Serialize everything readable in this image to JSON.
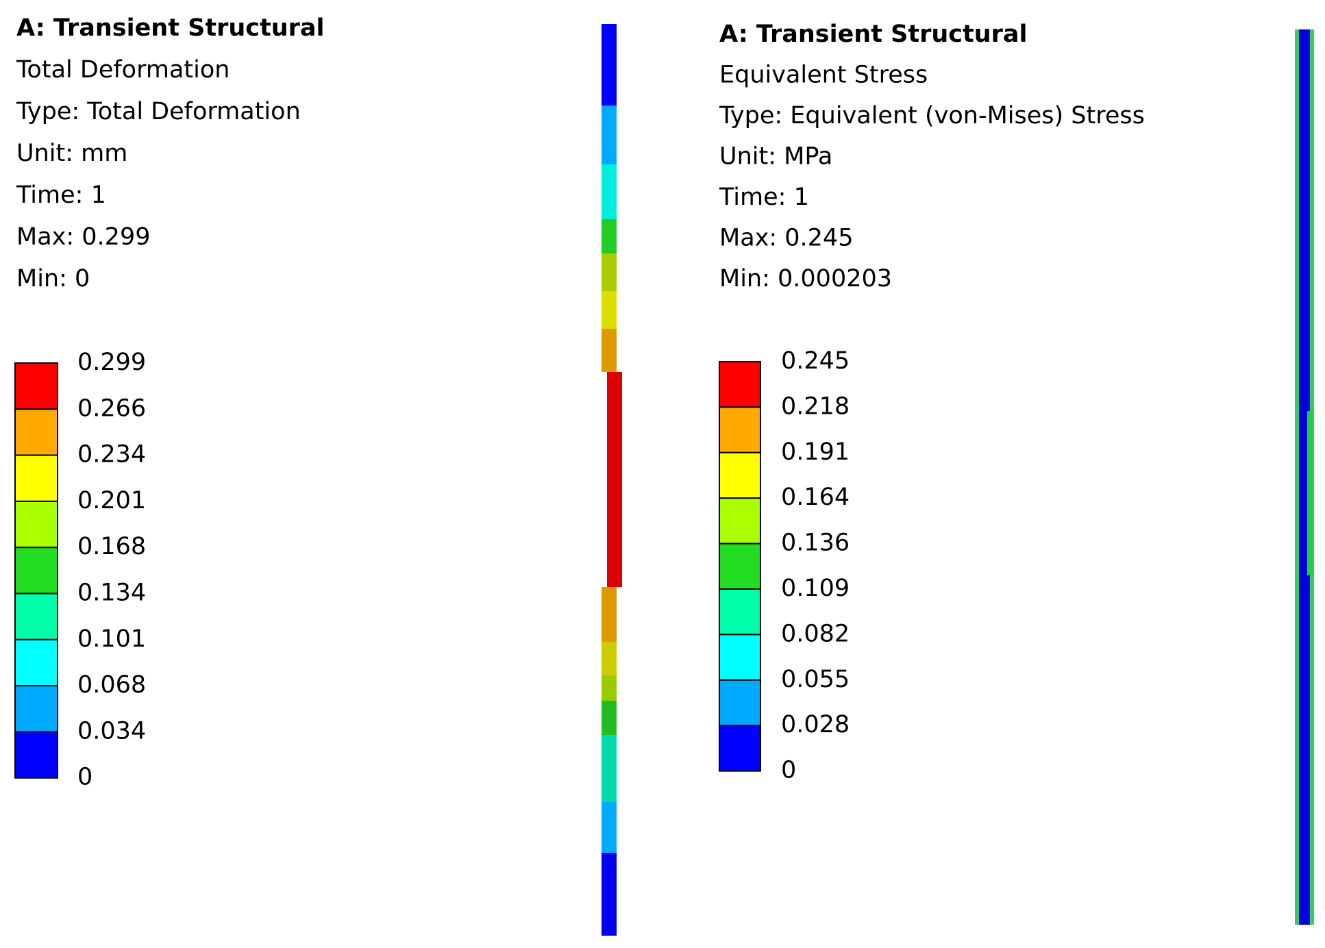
{
  "panels": [
    {
      "title": "A: Transient Structural",
      "lines": [
        "Total Deformation",
        "Type: Total Deformation",
        "Unit: mm",
        "Time: 1",
        "Max: 0.299",
        "Min: 0"
      ],
      "legend": [
        "0.299",
        "0.266",
        "0.234",
        "0.201",
        "0.168",
        "0.134",
        "0.101",
        "0.068",
        "0.034",
        "0"
      ]
    },
    {
      "title": "A: Transient Structural",
      "lines": [
        "Equivalent Stress",
        "Type: Equivalent (von-Mises) Stress",
        "Unit: MPa",
        "Time: 1",
        "Max: 0.245",
        "Min: 0.000203"
      ],
      "legend": [
        "0.245",
        "0.218",
        "0.191",
        "0.164",
        "0.136",
        "0.109",
        "0.082",
        "0.055",
        "0.028",
        "0"
      ]
    }
  ]
}
